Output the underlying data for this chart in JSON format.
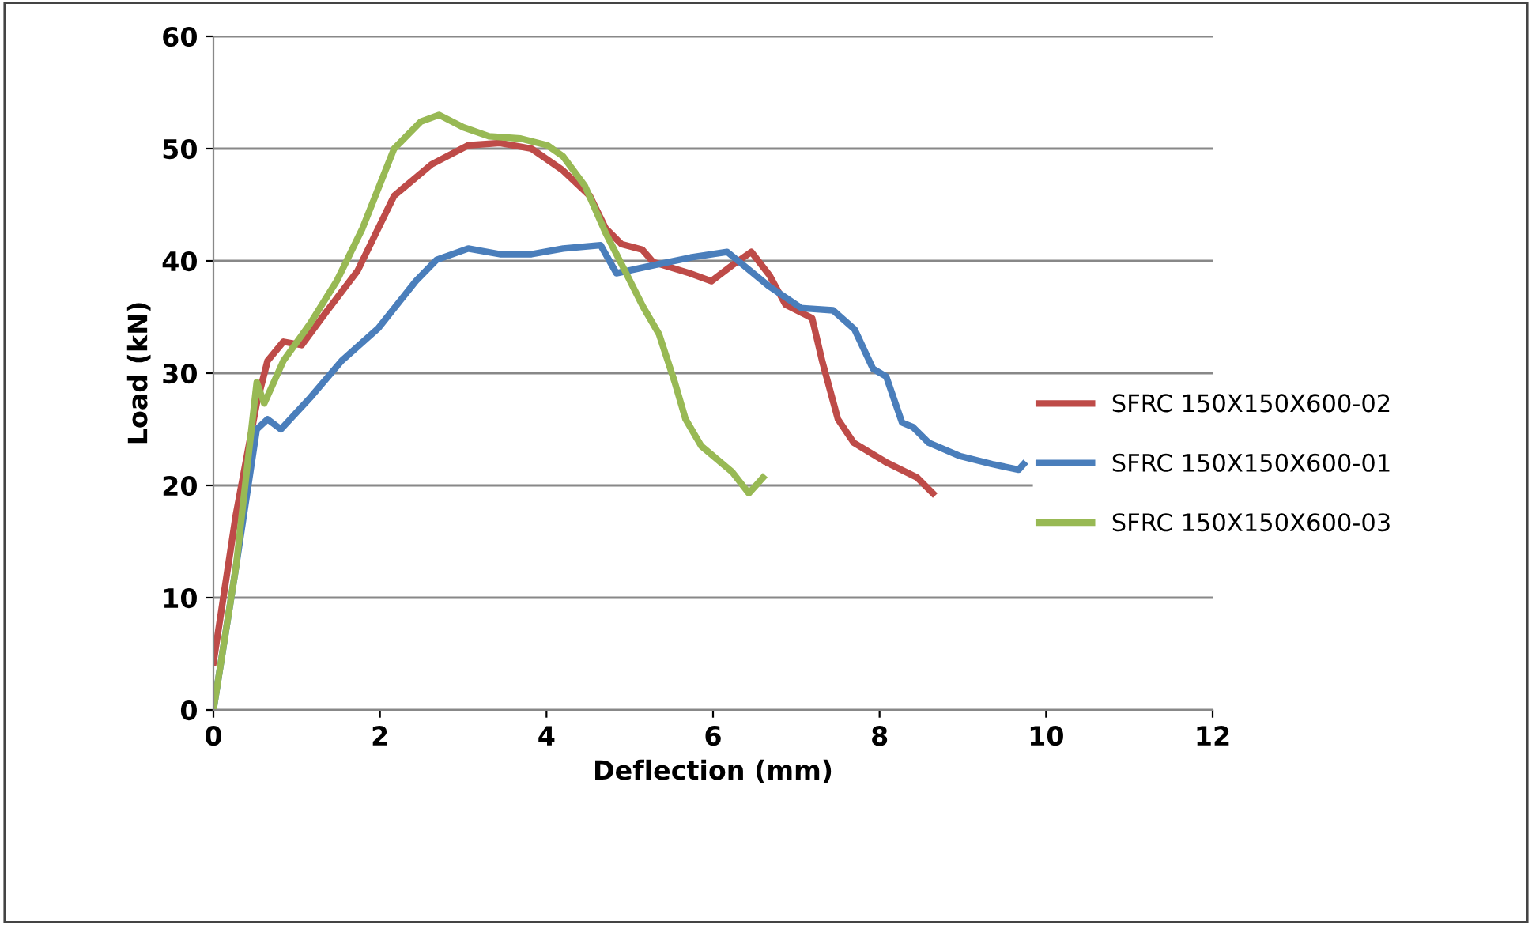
{
  "chart_data": {
    "type": "line",
    "xlabel": "Deflection (mm)",
    "ylabel": "Load (kN)",
    "xlim": [
      0,
      12
    ],
    "xticks": [
      0,
      2,
      4,
      6,
      8,
      10,
      12
    ],
    "ylim": [
      0,
      60
    ],
    "yticks": [
      0,
      10,
      20,
      30,
      40,
      50,
      60
    ],
    "grid": "y",
    "legend": "right",
    "marker": "none",
    "line_style": "solid",
    "series": [
      {
        "name": "SFRC 150X150X600-02",
        "color": "#be4b48",
        "x": [
          0,
          0.27,
          0.52,
          0.65,
          0.84,
          1.06,
          1.35,
          1.73,
          2.17,
          2.62,
          3.06,
          3.44,
          3.82,
          4.19,
          4.52,
          4.71,
          4.9,
          5.15,
          5.28,
          5.72,
          5.98,
          6.23,
          6.46,
          6.68,
          6.87,
          7.19,
          7.31,
          7.5,
          7.69,
          8.07,
          8.45,
          8.64
        ],
        "values": [
          4.2,
          17.4,
          27.3,
          31.1,
          32.8,
          32.5,
          35.4,
          39.1,
          45.8,
          48.6,
          50.3,
          50.5,
          50.0,
          48.1,
          45.8,
          42.9,
          41.5,
          41.0,
          39.9,
          38.9,
          38.2,
          39.6,
          40.8,
          38.7,
          36.1,
          34.9,
          31.1,
          25.9,
          23.8,
          22.1,
          20.7,
          19.3
        ]
      },
      {
        "name": "SFRC 150X150X600-01",
        "color": "#4a7ebb",
        "x": [
          0,
          0.27,
          0.52,
          0.65,
          0.81,
          1.16,
          1.54,
          1.98,
          2.43,
          2.68,
          3.06,
          3.44,
          3.82,
          4.2,
          4.65,
          4.84,
          5.28,
          5.73,
          6.17,
          6.68,
          7.06,
          7.44,
          7.7,
          7.92,
          8.08,
          8.27,
          8.4,
          8.59,
          8.97,
          9.35,
          9.67,
          9.73
        ],
        "values": [
          0,
          12.7,
          25,
          25.9,
          25,
          27.8,
          31.1,
          34,
          38.2,
          40.1,
          41.1,
          40.6,
          40.6,
          41.1,
          41.4,
          38.9,
          39.6,
          40.3,
          40.8,
          37.7,
          35.8,
          35.6,
          33.9,
          30.4,
          29.7,
          25.6,
          25.2,
          23.8,
          22.6,
          21.9,
          21.4,
          21.9
        ]
      },
      {
        "name": "SFRC 150X150X600-03",
        "color": "#98b954",
        "x": [
          0,
          0.27,
          0.52,
          0.61,
          0.84,
          1.16,
          1.48,
          1.79,
          2.17,
          2.49,
          2.71,
          3.0,
          3.31,
          3.69,
          4.01,
          4.2,
          4.46,
          4.71,
          4.97,
          5.16,
          5.35,
          5.54,
          5.67,
          5.86,
          6.23,
          6.43,
          6.6
        ],
        "values": [
          0,
          12.7,
          29.2,
          27.3,
          31.1,
          34.4,
          38.2,
          42.9,
          50,
          52.4,
          53,
          51.9,
          51.1,
          50.9,
          50.3,
          49.3,
          46.7,
          42.5,
          38.7,
          35.9,
          33.5,
          29.2,
          25.9,
          23.5,
          21.2,
          19.3,
          20.7
        ]
      }
    ]
  }
}
